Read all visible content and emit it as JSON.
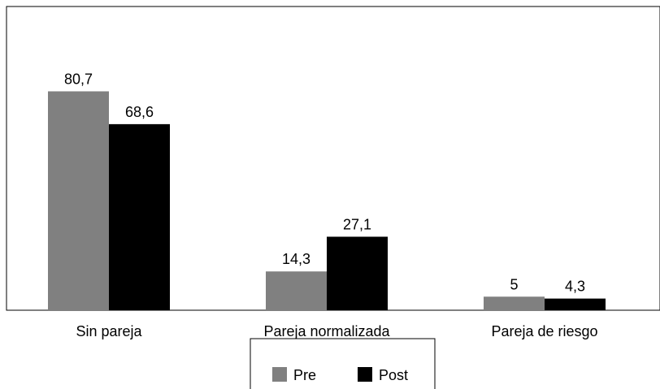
{
  "chart_data": {
    "type": "bar",
    "categories": [
      "Sin pareja",
      "Pareja normalizada",
      "Pareja de riesgo"
    ],
    "series": [
      {
        "name": "Pre",
        "values": [
          80.7,
          14.3,
          5
        ],
        "labels": [
          "80,7",
          "14,3",
          "5"
        ],
        "color": "#808080"
      },
      {
        "name": "Post",
        "values": [
          68.6,
          27.1,
          4.3
        ],
        "labels": [
          "68,6",
          "27,1",
          "4,3"
        ],
        "color": "#000000"
      }
    ],
    "ylim": [
      0,
      100
    ],
    "grid": false,
    "legend_position": "bottom-center"
  }
}
